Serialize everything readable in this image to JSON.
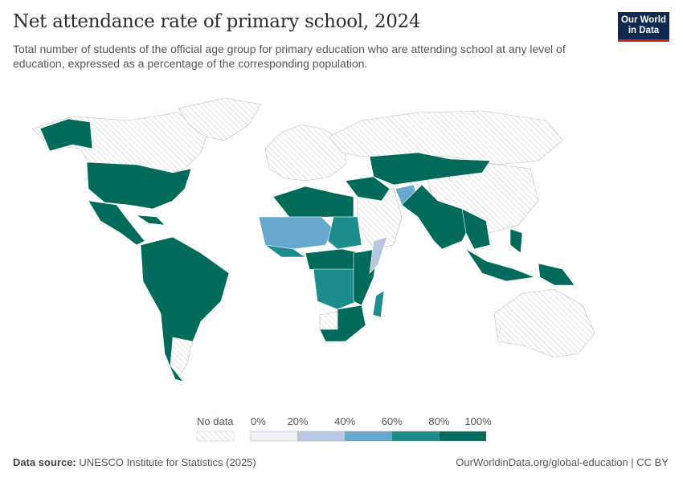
{
  "header": {
    "title": "Net attendance rate of primary school, 2024",
    "subtitle": "Total number of students of the official age group for primary education who are attending school at any level of education, expressed as a percentage of the corresponding population.",
    "logo_line1": "Our World",
    "logo_line2": "in Data"
  },
  "legend": {
    "no_data_label": "No data",
    "bins": [
      {
        "from": 0,
        "to": 20,
        "color": "#f3eef6"
      },
      {
        "from": 20,
        "to": 40,
        "color": "#b9c6e0"
      },
      {
        "from": 40,
        "to": 60,
        "color": "#67a8cf"
      },
      {
        "from": 60,
        "to": 80,
        "color": "#1c8c8c"
      },
      {
        "from": 80,
        "to": 100,
        "color": "#006b5b"
      }
    ],
    "ticks": [
      "0%",
      "20%",
      "40%",
      "60%",
      "80%",
      "100%"
    ]
  },
  "colors": {
    "no_data": "#d9d9d9",
    "border": "#ffffff"
  },
  "footer": {
    "source_label": "Data source:",
    "source": "UNESCO Institute for Statistics (2025)",
    "link": "OurWorldinData.org/global-education | CC BY"
  }
}
